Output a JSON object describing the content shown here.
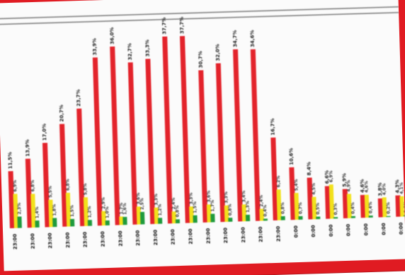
{
  "chart_data": {
    "type": "bar",
    "title": "",
    "xlabel": "",
    "ylabel": "",
    "grid": false,
    "legend": "none",
    "categories": [
      "23:00",
      "23:00",
      "23:00",
      "23:00",
      "23:00",
      "23:00",
      "23:00",
      "23:00",
      "23:00",
      "23:00",
      "23:00",
      "23:00",
      "23:00",
      "23:00",
      "23:00",
      "23:00",
      "0:00",
      "0:00",
      "0:00",
      "0:00",
      "0:00",
      "0:00",
      "0:00",
      "0:00"
    ],
    "colors": {
      "red": "#e3232b",
      "yellow": "#f2e11c",
      "green": "#1e9a3c",
      "frame": "#e01b22",
      "line": "#7a7a7a"
    },
    "series": [
      {
        "values": [
          11.5,
          13.9,
          17.0,
          20.7,
          23.7,
          33.9,
          36.0,
          32.7,
          33.3,
          37.7,
          37.7,
          30.7,
          32.0,
          34.7,
          34.6,
          16.7,
          10.6,
          8.4,
          6.6,
          5.9,
          4.6,
          3.8,
          4.3,
          4.0
        ],
        "labels": [
          "11,5%",
          "13,9%",
          "17,0%",
          "20,7%",
          "23,7%",
          "33,9%",
          "36,0%",
          "32,7%",
          "33,3%",
          "37,7%",
          "37,7%",
          "30,7%",
          "32,0%",
          "34,7%",
          "34,6%",
          "16,7%",
          "10,6%",
          "8,4%",
          "6,6%",
          "5,9%",
          "4,6%",
          "3,8%",
          "4,3%",
          "4,0%"
        ]
      },
      {
        "values": [
          6.9,
          6.8,
          5.5,
          6.8,
          5.8,
          2.9,
          1.7,
          3.6,
          3.3,
          2.4,
          3.3,
          3.6,
          3.3,
          3.4,
          2.4,
          6.2,
          5.4,
          4.5,
          6.9,
          4.9,
          4.6,
          4.0,
          4.1,
          3.1
        ],
        "labels": [
          "6,9%",
          "6,8%",
          "5,5%",
          "6,8%",
          "5,8%",
          "2,9%",
          "1,7%",
          "3,6%",
          "3,3%",
          "2,4%",
          "3,3%",
          "3,6%",
          "3,3%",
          "3,4%",
          "2,4%",
          "6,2%",
          "5,4%",
          "4,5%",
          "6,9%",
          "4,9%",
          "4,6%",
          "4,0%",
          "4,1%",
          "3,1%"
        ]
      },
      {
        "values": [
          2.3,
          1.4,
          1.8,
          1.5,
          1.2,
          1.0,
          1.6,
          2.5,
          1.2,
          0.8,
          1.5,
          1.7,
          0.8,
          1.3,
          0.4,
          0.8,
          0.7,
          0.5,
          0.3,
          0.4,
          0.4,
          0.2,
          0.3,
          0.2
        ],
        "labels": [
          "2,3%",
          "1,4%",
          "1,8%",
          "1,5%",
          "1,2%",
          "1,0%",
          "1,6%",
          "2,5%",
          "1,2%",
          "0,8%",
          "1,5%",
          "1,7%",
          "0,8%",
          "1,3%",
          "0,4%",
          "0,8%",
          "0,7%",
          "0,5%",
          "0,3%",
          "0,4%",
          "0,4%",
          "0,2%",
          "0,3%",
          "0,2%"
        ]
      }
    ]
  }
}
